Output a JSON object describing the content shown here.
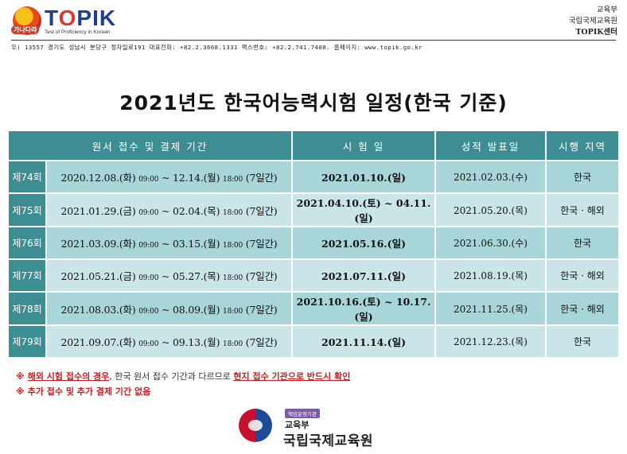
{
  "header": {
    "logo_text_t": "T",
    "logo_text_o": "O",
    "logo_text_rest": "PIK",
    "logo_tagline": "Test of Proficiency in Korean",
    "logo_badge": "가나다라",
    "org_line1": "교육부",
    "org_line2": "국립국제교육원",
    "org_line3": "TOPIK센터",
    "address": "우) 13557  경기도 성남시 분당구 정자일로191  대표전화: +82.2.3668.1331  팩스번호: +82.2.741.7408.  홈페이지: www.topik.go.kr"
  },
  "title": "2021년도 한국어능력시험 일정(한국 기준)",
  "table": {
    "headers": [
      "원서 접수 및 결제 기간",
      "시 험 일",
      "성적 발표일",
      "시행 지역"
    ],
    "rows": [
      {
        "round": "제74회",
        "p1": "2020.12.08.(화)",
        "t1": "09:00",
        "p2": "~ 12.14.(월)",
        "t2": "18:00",
        "p3": "(7일간)",
        "test": "2021.01.10.(일)",
        "result": "2021.02.03.(수)",
        "region": "한국"
      },
      {
        "round": "제75회",
        "p1": "2021.01.29.(금)",
        "t1": "09:00",
        "p2": "~ 02.04.(목)",
        "t2": "18:00",
        "p3": "(7일간)",
        "test": "2021.04.10.(토) ~ 04.11.(일)",
        "result": "2021.05.20.(목)",
        "region": "한국 · 해외"
      },
      {
        "round": "제76회",
        "p1": "2021.03.09.(화)",
        "t1": "09:00",
        "p2": "~ 03.15.(월)",
        "t2": "18:00",
        "p3": "(7일간)",
        "test": "2021.05.16.(일)",
        "result": "2021.06.30.(수)",
        "region": "한국"
      },
      {
        "round": "제77회",
        "p1": "2021.05.21.(금)",
        "t1": "09:00",
        "p2": "~ 05.27.(목)",
        "t2": "18:00",
        "p3": "(7일간)",
        "test": "2021.07.11.(일)",
        "result": "2021.08.19.(목)",
        "region": "한국 · 해외"
      },
      {
        "round": "제78회",
        "p1": "2021.08.03.(화)",
        "t1": "09:00",
        "p2": "~ 08.09.(월)",
        "t2": "18:00",
        "p3": "(7일간)",
        "test": "2021.10.16.(토) ~ 10.17.(일)",
        "result": "2021.11.25.(목)",
        "region": "한국 · 해외"
      },
      {
        "round": "제79회",
        "p1": "2021.09.07.(화)",
        "t1": "09:00",
        "p2": "~ 09.13.(월)",
        "t2": "18:00",
        "p3": "(7일간)",
        "test": "2021.11.14.(일)",
        "result": "2021.12.23.(목)",
        "region": "한국"
      }
    ]
  },
  "notes": {
    "mark": "※",
    "n1_a": "해외 시험 접수의 경우",
    "n1_b": ", 한국 원서 접수 기간과 다르므로 ",
    "n1_c": "현지 접수 기관으로 반드시 확인",
    "n2": "추가 접수 및 추가 결제 기간 없음"
  },
  "footer": {
    "badge": "책임운영기관",
    "ministry": "교육부",
    "institute": "국립국제교육원"
  },
  "colors": {
    "header_teal": "#3d8e92",
    "row_light": "#c9e5e7",
    "row_mid": "#a8d6d8",
    "warning_red": "#d01c1c"
  }
}
